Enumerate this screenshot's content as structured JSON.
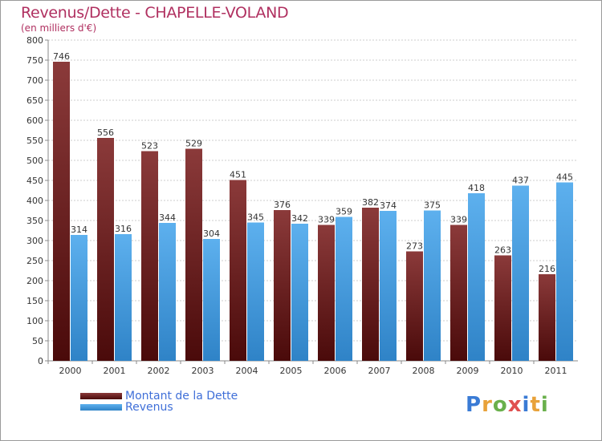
{
  "title": "Revenus/Dette - CHAPELLE-VOLAND",
  "subtitle": "(en milliers d'€)",
  "colors": {
    "dette_top": "#8b3a3a",
    "dette_bottom": "#4a0a0a",
    "revenus_top": "#5db0ee",
    "revenus_bottom": "#2f83c7",
    "title": "#b03060",
    "legend_text": "#3f6fd8",
    "grid": "#cccccc"
  },
  "chart_data": {
    "type": "bar",
    "title": "Revenus/Dette - CHAPELLE-VOLAND",
    "ylabel": "(en milliers d'€)",
    "xlabel": "",
    "ylim": [
      0,
      800
    ],
    "ytick_step": 50,
    "grid": true,
    "categories": [
      "2000",
      "2001",
      "2002",
      "2003",
      "2004",
      "2005",
      "2006",
      "2007",
      "2008",
      "2009",
      "2010",
      "2011"
    ],
    "series": [
      {
        "name": "Montant de la Dette",
        "values": [
          746,
          556,
          523,
          529,
          451,
          376,
          339,
          382,
          273,
          339,
          263,
          216
        ]
      },
      {
        "name": "Revenus",
        "values": [
          314,
          316,
          344,
          304,
          345,
          342,
          359,
          374,
          375,
          418,
          437,
          445
        ]
      }
    ]
  },
  "legend": {
    "dette_label": "Montant de la Dette",
    "revenus_label": "Revenus"
  },
  "logo": {
    "letters": [
      "P",
      "r",
      "o",
      "x",
      "i",
      "t",
      "i"
    ],
    "letter_colors": [
      "#3a7bd5",
      "#e8a23a",
      "#6ab04c",
      "#e05050",
      "#3a7bd5",
      "#e8a23a",
      "#6ab04c"
    ]
  }
}
